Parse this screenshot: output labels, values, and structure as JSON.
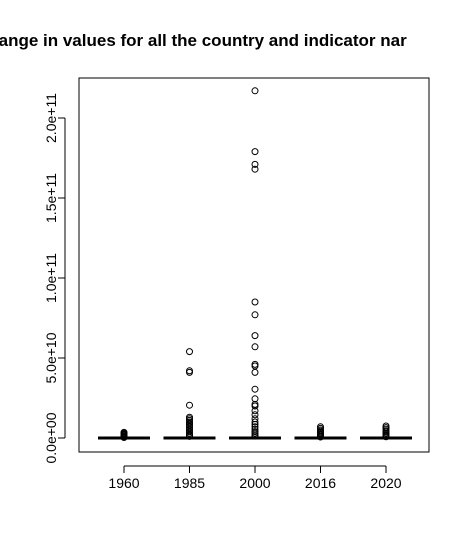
{
  "chart_data": {
    "type": "boxplot",
    "title": "range in values for all the country and indicator nar",
    "xlabel": "",
    "ylabel": "",
    "categories": [
      "1960",
      "1985",
      "2000",
      "2016",
      "2020"
    ],
    "ylim": [
      -8000000000,
      226000000000
    ],
    "y_ticks": [
      0,
      50000000000,
      100000000000,
      150000000000,
      200000000000
    ],
    "y_tick_labels": [
      "0.0e+00",
      "5.0e+10",
      "1.0e+11",
      "1.5e+11",
      "2.0e+11"
    ],
    "grid": false,
    "series": [
      {
        "category": "1960",
        "median": 0,
        "outliers": [
          3500000000,
          3000000000,
          2500000000,
          2000000000,
          1500000000,
          1000000000,
          600000000,
          300000000
        ]
      },
      {
        "category": "1985",
        "median": 0,
        "outliers": [
          54000000000,
          42000000000,
          41000000000,
          20500000000,
          13000000000,
          12000000000,
          11000000000,
          10000000000,
          9000000000,
          8000000000,
          7000000000,
          6000000000,
          5000000000,
          4000000000,
          3000000000,
          2000000000,
          1500000000,
          1000000000
        ]
      },
      {
        "category": "2000",
        "median": 0,
        "outliers": [
          217000000000,
          179000000000,
          171000000000,
          168000000000,
          85000000000,
          77000000000,
          64000000000,
          57000000000,
          46000000000,
          45000000000,
          41000000000,
          30500000000,
          24500000000,
          21000000000,
          20000000000,
          17000000000,
          14500000000,
          12000000000,
          10000000000,
          8500000000,
          7000000000,
          5500000000,
          4000000000,
          3000000000,
          2000000000,
          1200000000
        ]
      },
      {
        "category": "2016",
        "median": 0,
        "outliers": [
          7000000000,
          6000000000,
          5000000000,
          4200000000,
          3500000000,
          2800000000,
          2000000000,
          1200000000,
          600000000
        ]
      },
      {
        "category": "2020",
        "median": 0,
        "outliers": [
          7500000000,
          6500000000,
          5500000000,
          4500000000,
          3800000000,
          3000000000,
          2200000000,
          1500000000,
          800000000
        ]
      }
    ]
  }
}
